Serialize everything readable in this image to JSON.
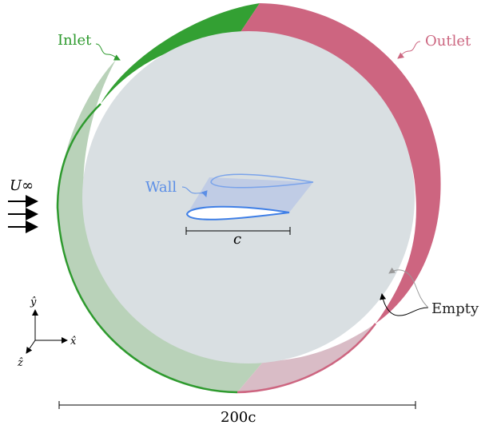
{
  "labels": {
    "inlet": "Inlet",
    "outlet": "Outlet",
    "wall": "Wall",
    "empty": "Empty",
    "freestream": "U∞",
    "chord": "c",
    "domain_size": "200c",
    "axis_x": "x̂",
    "axis_y": "ŷ",
    "axis_z": "ẑ"
  },
  "colors": {
    "inlet": "#2e9a2e",
    "outlet": "#cc6680",
    "wall": "#5b8ee6",
    "face": "#d9dfe2",
    "ink": "#000000"
  }
}
